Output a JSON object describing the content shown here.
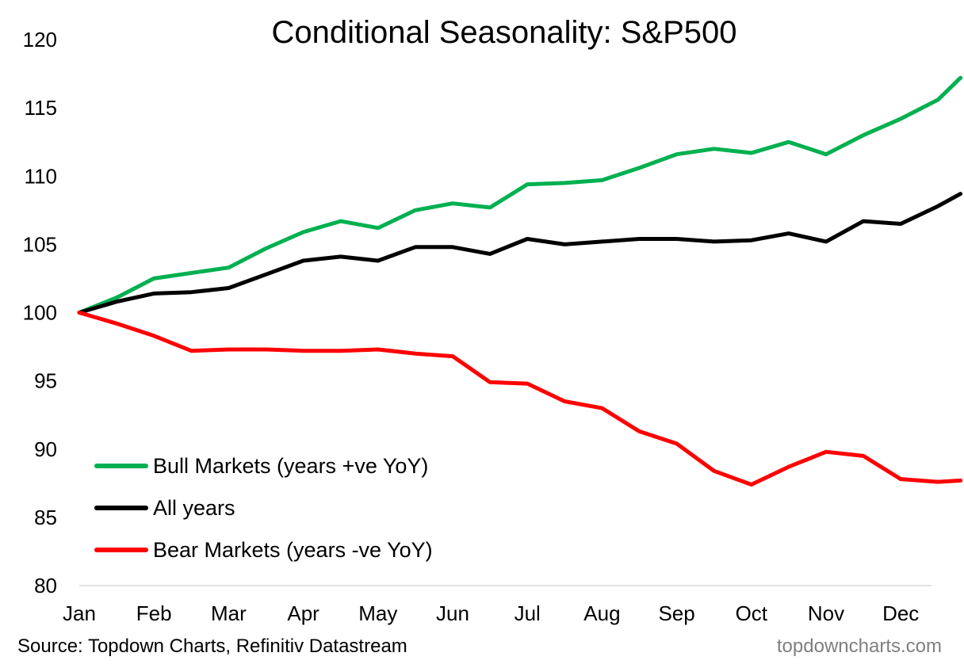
{
  "chart_data": {
    "type": "line",
    "title": "Conditional Seasonality: S&P500",
    "xlabel": "",
    "ylabel": "",
    "ylim": [
      80,
      120
    ],
    "yticks": [
      80,
      85,
      90,
      95,
      100,
      105,
      110,
      115,
      120
    ],
    "categories": [
      "Jan",
      "Feb",
      "Mar",
      "Apr",
      "May",
      "Jun",
      "Jul",
      "Aug",
      "Sep",
      "Oct",
      "Nov",
      "Dec"
    ],
    "x": [
      0,
      0.5,
      1,
      1.5,
      2,
      2.5,
      3,
      3.5,
      4,
      4.5,
      5,
      5.5,
      6,
      6.5,
      7,
      7.5,
      8,
      8.5,
      9,
      9.5,
      10,
      10.5,
      11,
      11.5,
      11.8
    ],
    "grid": false,
    "legend_position": "lower-left",
    "series": [
      {
        "name": "Bull Markets (years +ve YoY)",
        "color": "#00b050",
        "values": [
          100,
          101.1,
          102.5,
          102.9,
          103.3,
          104.7,
          105.9,
          106.7,
          106.2,
          107.5,
          108.0,
          107.7,
          109.4,
          109.5,
          109.7,
          110.6,
          111.6,
          112.0,
          111.7,
          112.5,
          111.6,
          113.0,
          114.2,
          115.6,
          117.2
        ]
      },
      {
        "name": "All years",
        "color": "#000000",
        "values": [
          100,
          100.8,
          101.4,
          101.5,
          101.8,
          102.8,
          103.8,
          104.1,
          103.8,
          104.8,
          104.8,
          104.3,
          105.4,
          105.0,
          105.2,
          105.4,
          105.4,
          105.2,
          105.3,
          105.8,
          105.2,
          106.7,
          106.5,
          107.8,
          108.7
        ]
      },
      {
        "name": "Bear Markets (years -ve YoY)",
        "color": "#ff0000",
        "values": [
          100,
          99.2,
          98.3,
          97.2,
          97.3,
          97.3,
          97.2,
          97.2,
          97.3,
          97.0,
          96.8,
          94.9,
          94.8,
          93.5,
          93.0,
          91.3,
          90.4,
          88.4,
          87.4,
          88.7,
          89.8,
          89.5,
          87.8,
          87.6,
          87.7
        ]
      }
    ],
    "source": "Source: Topdown Charts, Refinitiv Datastream",
    "brand": "topdowncharts.com"
  }
}
